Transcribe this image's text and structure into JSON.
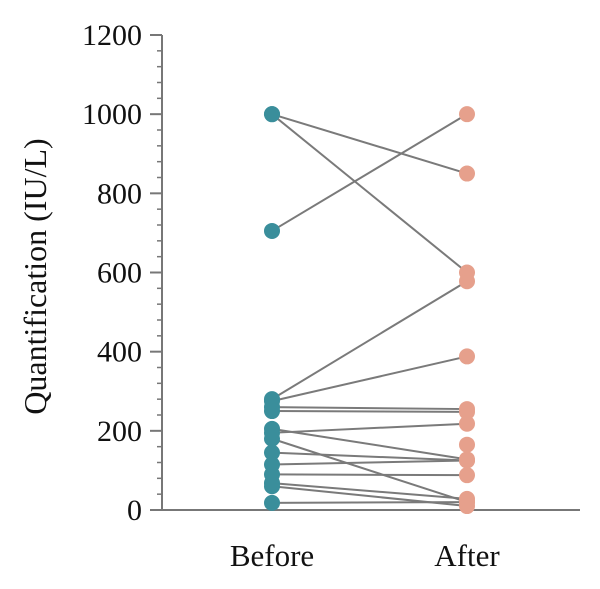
{
  "chart_data": {
    "type": "scatter",
    "subtype": "paired-before-after",
    "title": "",
    "xlabel": "",
    "ylabel": "Quantification (IU/L)",
    "ylim": [
      0,
      1200
    ],
    "yticks": [
      0,
      200,
      400,
      600,
      800,
      1000,
      1200
    ],
    "y_minor_step": 40,
    "grid": false,
    "categories": [
      "Before",
      "After"
    ],
    "colors": {
      "before": "#3a8e9b",
      "after": "#e6a08c",
      "line": "#7a7a7a",
      "axis": "#777777"
    },
    "pairs": [
      {
        "before": 1000,
        "after": 850
      },
      {
        "before": 1000,
        "after": 600
      },
      {
        "before": 705,
        "after": 1000
      },
      {
        "before": 280,
        "after": 578
      },
      {
        "before": 275,
        "after": 388
      },
      {
        "before": 260,
        "after": 255
      },
      {
        "before": 250,
        "after": 248
      },
      {
        "before": 205,
        "after": 128
      },
      {
        "before": 195,
        "after": 218
      },
      {
        "before": 180,
        "after": 20
      },
      {
        "before": 145,
        "after": 125
      },
      {
        "before": 115,
        "after": 125
      },
      {
        "before": 90,
        "after": 88
      },
      {
        "before": 68,
        "after": 28
      },
      {
        "before": 60,
        "after": 10
      },
      {
        "before": 18,
        "after": 20
      }
    ],
    "extra_after_points": [
      165
    ]
  }
}
